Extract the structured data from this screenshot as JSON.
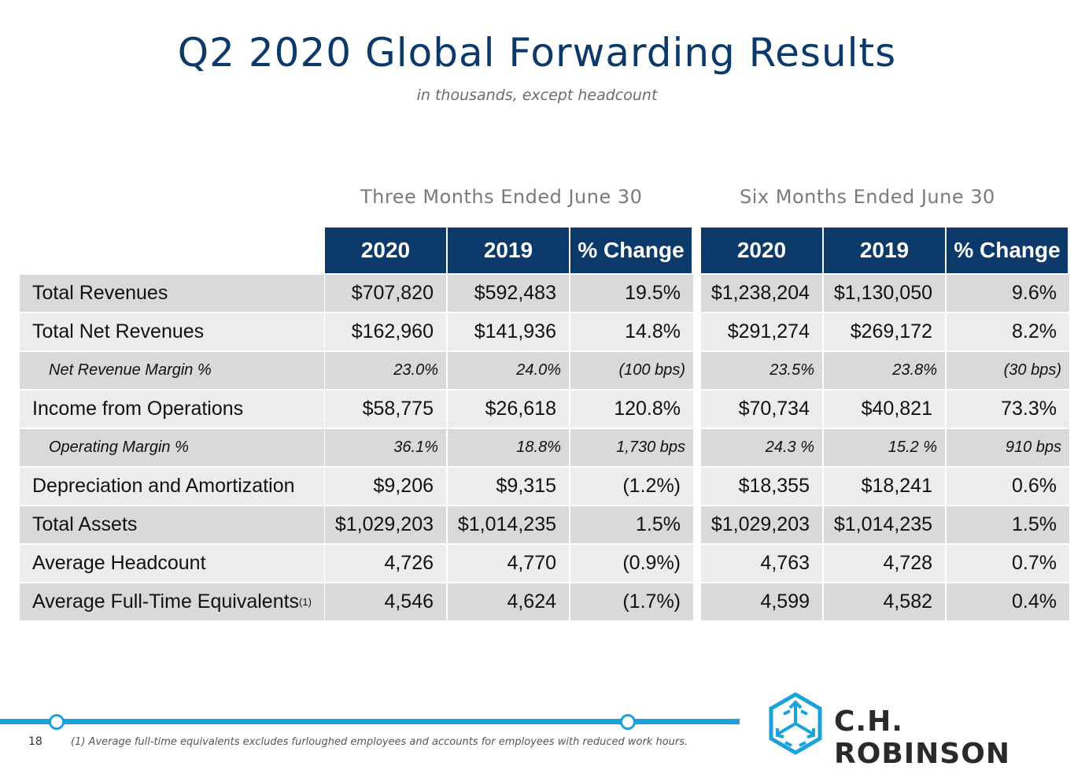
{
  "title": "Q2 2020 Global Forwarding Results",
  "subtitle": "in thousands, except headcount",
  "periods": {
    "three_months": "Three Months Ended June 30",
    "six_months": "Six Months Ended June 30"
  },
  "headers": [
    "2020",
    "2019",
    "% Change",
    "2020",
    "2019",
    "% Change"
  ],
  "rows": [
    {
      "label": "Total Revenues",
      "values": [
        "$707,820",
        "$592,483",
        "19.5%",
        "$1,238,204",
        "$1,130,050",
        "9.6%"
      ]
    },
    {
      "label": "Total Net Revenues",
      "values": [
        "$162,960",
        "$141,936",
        "14.8%",
        "$291,274",
        "$269,172",
        "8.2%"
      ]
    },
    {
      "label": "Net Revenue Margin %",
      "values": [
        "23.0%",
        "24.0%",
        "(100 bps)",
        "23.5%",
        "23.8%",
        "(30 bps)"
      ]
    },
    {
      "label": "Income from Operations",
      "values": [
        "$58,775",
        "$26,618",
        "120.8%",
        "$70,734",
        "$40,821",
        "73.3%"
      ]
    },
    {
      "label": "Operating Margin %",
      "values": [
        "36.1%",
        "18.8%",
        "1,730 bps",
        "24.3 %",
        "15.2 %",
        "910 bps"
      ]
    },
    {
      "label": "Depreciation and Amortization",
      "values": [
        "$9,206",
        "$9,315",
        "(1.2%)",
        "$18,355",
        "$18,241",
        "0.6%"
      ]
    },
    {
      "label": "Total Assets",
      "values": [
        "$1,029,203",
        "$1,014,235",
        "1.5%",
        "$1,029,203",
        "$1,014,235",
        "1.5%"
      ]
    },
    {
      "label": "Average Headcount",
      "values": [
        "4,726",
        "4,770",
        "(0.9%)",
        "4,763",
        "4,728",
        "0.7%"
      ]
    },
    {
      "label": "Average Full-Time Equivalents",
      "label_sup": "(1)",
      "values": [
        "4,546",
        "4,624",
        "(1.7%)",
        "4,599",
        "4,582",
        "0.4%"
      ]
    }
  ],
  "footer": {
    "page_number": "18",
    "footnote": "(1) Average full-time equivalents excludes furloughed employees and accounts for employees with reduced work hours.",
    "brand": "C.H. ROBINSON",
    "logo_icon": "ch-robinson-cube-logo"
  },
  "colors": {
    "header_bg": "#0b3a6a",
    "title": "#0b3a6a",
    "accent_line": "#1aa2dc",
    "row_dark": "#d9d9d9",
    "row_light": "#ececec"
  }
}
